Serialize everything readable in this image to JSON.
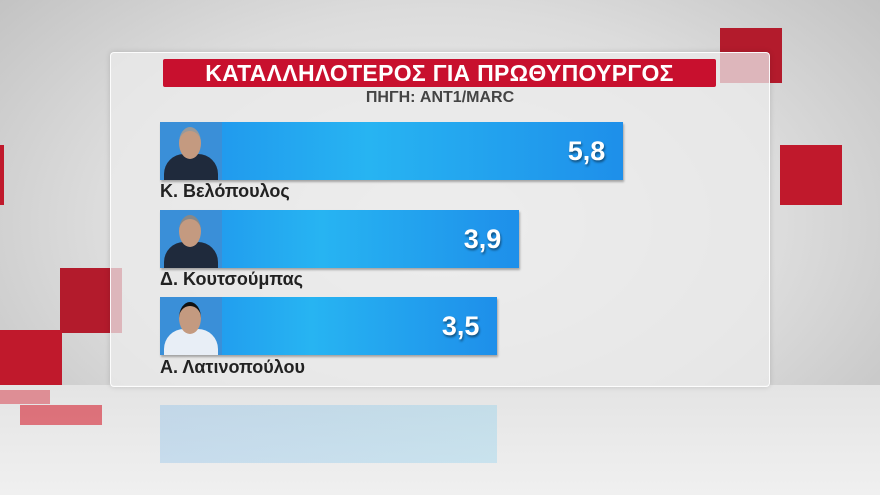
{
  "chart_data": {
    "type": "bar",
    "orientation": "horizontal",
    "title": "ΚΑΤΑΛΛΗΛΟΤΕΡΟΣ ΓΙΑ ΠΡΩΘΥΠΟΥΡΓΟΣ",
    "subtitle": "ΠΗΓΗ: ANT1/MARC",
    "categories": [
      "Κ. Βελόπουλος",
      "Δ. Κουτσούμπας",
      "Α. Λατινοπούλου"
    ],
    "values": [
      5.8,
      3.9,
      3.5
    ],
    "value_labels": [
      "5,8",
      "3,9",
      "3,5"
    ],
    "grid": false,
    "colors": {
      "bar": "#1e90ec",
      "title_bg": "#c8102e",
      "accent": "#c8102e"
    }
  }
}
